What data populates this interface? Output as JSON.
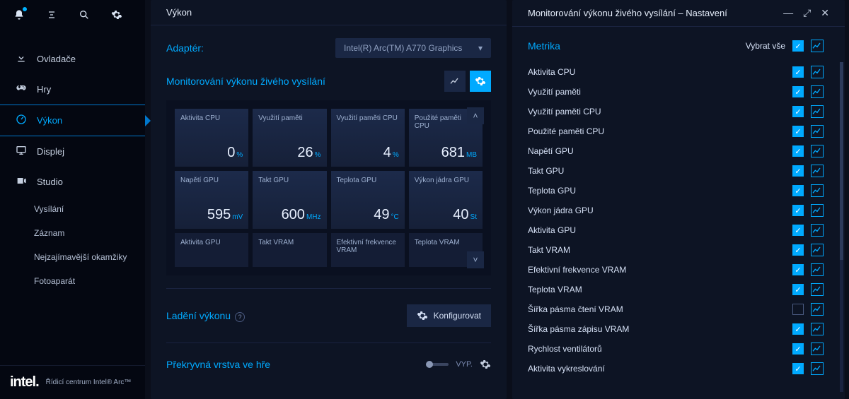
{
  "sidebar": {
    "nav": [
      {
        "icon": "download",
        "label": "Ovladače"
      },
      {
        "icon": "gamepad",
        "label": "Hry"
      },
      {
        "icon": "gauge",
        "label": "Výkon",
        "active": true
      },
      {
        "icon": "monitor",
        "label": "Displej"
      },
      {
        "icon": "camera",
        "label": "Studio"
      }
    ],
    "sub": [
      "Vysílání",
      "Záznam",
      "Nejzajímavější okamžiky",
      "Fotoaparát"
    ],
    "brand_logo": "intel.",
    "brand_text": "Řídicí centrum Intel® Arc™"
  },
  "left": {
    "title": "Výkon",
    "adapter_label": "Adaptér:",
    "adapter_value": "Intel(R) Arc(TM) A770 Graphics",
    "monitor_label": "Monitorování výkonu živého vysílání",
    "tiles": [
      {
        "label": "Aktivita CPU",
        "val": "0",
        "unit": "%"
      },
      {
        "label": "Využití paměti",
        "val": "26",
        "unit": "%"
      },
      {
        "label": "Využití paměti CPU",
        "val": "4",
        "unit": "%"
      },
      {
        "label": "Použité paměti CPU",
        "val": "681",
        "unit": "MB"
      },
      {
        "label": "Napětí GPU",
        "val": "595",
        "unit": "mV"
      },
      {
        "label": "Takt GPU",
        "val": "600",
        "unit": "MHz"
      },
      {
        "label": "Teplota GPU",
        "val": "49",
        "unit": "°C"
      },
      {
        "label": "Výkon jádra GPU",
        "val": "40",
        "unit": "St"
      }
    ],
    "tiles_dim": [
      {
        "label": "Aktivita GPU"
      },
      {
        "label": "Takt VRAM"
      },
      {
        "label": "Efektivní frekvence VRAM"
      },
      {
        "label": "Teplota VRAM"
      }
    ],
    "tuning_label": "Ladění výkonu",
    "config_label": "Konfigurovat",
    "overlay_label": "Překryvná vrstva ve hře",
    "overlay_state": "VYP."
  },
  "right": {
    "title": "Monitorování výkonu živého vysílání – Nastavení",
    "metrika": "Metrika",
    "select_all": "Vybrat vše",
    "metrics": [
      {
        "label": "Aktivita CPU",
        "on": true
      },
      {
        "label": "Využití paměti",
        "on": true
      },
      {
        "label": "Využití paměti CPU",
        "on": true
      },
      {
        "label": "Použité paměti CPU",
        "on": true
      },
      {
        "label": "Napětí GPU",
        "on": true
      },
      {
        "label": "Takt GPU",
        "on": true
      },
      {
        "label": "Teplota GPU",
        "on": true
      },
      {
        "label": "Výkon jádra GPU",
        "on": true
      },
      {
        "label": "Aktivita GPU",
        "on": true
      },
      {
        "label": "Takt VRAM",
        "on": true
      },
      {
        "label": "Efektivní frekvence VRAM",
        "on": true
      },
      {
        "label": "Teplota VRAM",
        "on": true
      },
      {
        "label": "Šířka pásma čtení VRAM",
        "on": false
      },
      {
        "label": "Šířka pásma zápisu VRAM",
        "on": true
      },
      {
        "label": "Rychlost ventilátorů",
        "on": true
      },
      {
        "label": "Aktivita vykreslování",
        "on": true
      }
    ]
  }
}
